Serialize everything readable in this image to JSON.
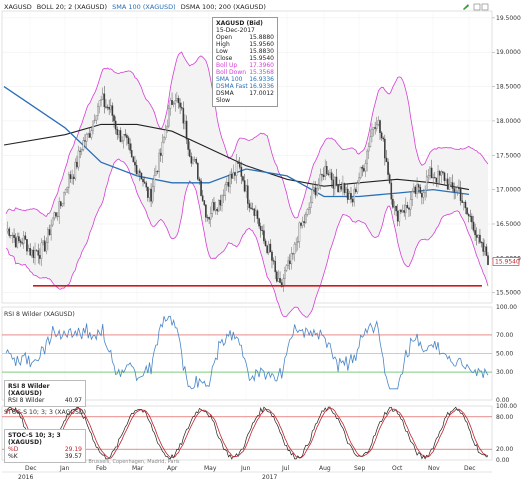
{
  "header": {
    "items": [
      {
        "label": "XAGUSD",
        "color": "#222222"
      },
      {
        "label": "BOLL 20; 2 (XAGUSD)",
        "color": "#222222"
      },
      {
        "label": "SMA 100 (XAGUSD)",
        "color": "#2a6fb5"
      },
      {
        "label": "DSMA 100; 200 (XAGUSD)",
        "color": "#222222"
      }
    ]
  },
  "info_box": {
    "title": "XAGUSD (Bid)",
    "date": "15-Dec-2017",
    "rows": [
      {
        "label": "Open",
        "value": "15.8880",
        "color": "#222222"
      },
      {
        "label": "High",
        "value": "15.9560",
        "color": "#222222"
      },
      {
        "label": "Low",
        "value": "15.8830",
        "color": "#222222"
      },
      {
        "label": "Close",
        "value": "15.9540",
        "color": "#222222"
      },
      {
        "label": "Boll Up",
        "value": "17.3960",
        "color": "#d53fd5"
      },
      {
        "label": "Boll Down",
        "value": "15.3568",
        "color": "#d53fd5"
      },
      {
        "label": "SMA 100",
        "value": "16.9336",
        "color": "#2a6fb5"
      },
      {
        "label": "DSMA Fast",
        "value": "16.9336",
        "color": "#2a6fb5"
      },
      {
        "label": "DSMA Slow",
        "value": "17.0012",
        "color": "#222222"
      }
    ]
  },
  "price_axis": [
    "19.5000",
    "19.0000",
    "18.5000",
    "18.0000",
    "17.5000",
    "17.0000",
    "16.5000",
    "16.0000",
    "15.5000"
  ],
  "last_price": "15.9540",
  "rsi": {
    "header": "RSI 8 Wilder (XAGUSD)",
    "box_title": "RSI 8 Wilder (XAGUSD)",
    "box_label": "RSI 8 Wilder",
    "box_value": "40.97",
    "axis": [
      "100.00",
      "70.00",
      "50.00",
      "30.00",
      "0.00"
    ]
  },
  "stoc": {
    "header": "STOC-S 10; 3; 3 (XAGUSD)",
    "box_title": "STOC-S 10; 3; 3 (XAGUSD)",
    "rows": [
      {
        "label": "%D",
        "value": "29.19",
        "color": "#c0262e"
      },
      {
        "label": "%K",
        "value": "39.57",
        "color": "#222222"
      }
    ],
    "axis": [
      "100.00",
      "80.00",
      "20.00",
      "0.00"
    ]
  },
  "indicative": "INDICATIVE PRICES - Time Zone: Brussels, Copenhagen, Madrid, Paris",
  "months": [
    "Dec",
    "Jan",
    "Feb",
    "Mar",
    "Apr",
    "May",
    "Jun",
    "Jul",
    "Aug",
    "Sep",
    "Oct",
    "Nov",
    "Dec"
  ],
  "years": [
    "2016",
    "2017"
  ],
  "colors": {
    "boll": "#d53fd5",
    "sma": "#2a6fb5",
    "dsma": "#222222",
    "support": "#d01a1a",
    "rsi": "#4a86c6",
    "stoch_d": "#c0262e"
  },
  "chart_data": {
    "type": "line",
    "title": "XAGUSD",
    "x": [
      "Dec",
      "Jan",
      "Feb",
      "Mar",
      "Apr",
      "May",
      "Jun",
      "Jul",
      "Aug",
      "Sep",
      "Oct",
      "Nov",
      "Dec"
    ],
    "ylim": [
      15.35,
      19.6
    ],
    "series": [
      {
        "name": "XAGUSD",
        "values": [
          16.5,
          16.3,
          17.5,
          17.6,
          18.1,
          16.8,
          17.4,
          15.6,
          17.0,
          17.9,
          16.9,
          17.0,
          15.9
        ]
      },
      {
        "name": "SMA 100",
        "values": [
          18.5,
          17.9,
          17.4,
          17.2,
          17.1,
          17.1,
          17.3,
          17.2,
          16.9,
          16.9,
          16.95,
          17.0,
          16.93
        ]
      },
      {
        "name": "DSMA 100; 200",
        "values": [
          17.65,
          17.8,
          17.95,
          17.95,
          17.85,
          17.6,
          17.35,
          17.15,
          17.05,
          17.1,
          17.15,
          17.1,
          17.0
        ]
      }
    ],
    "support_level": 15.6
  }
}
